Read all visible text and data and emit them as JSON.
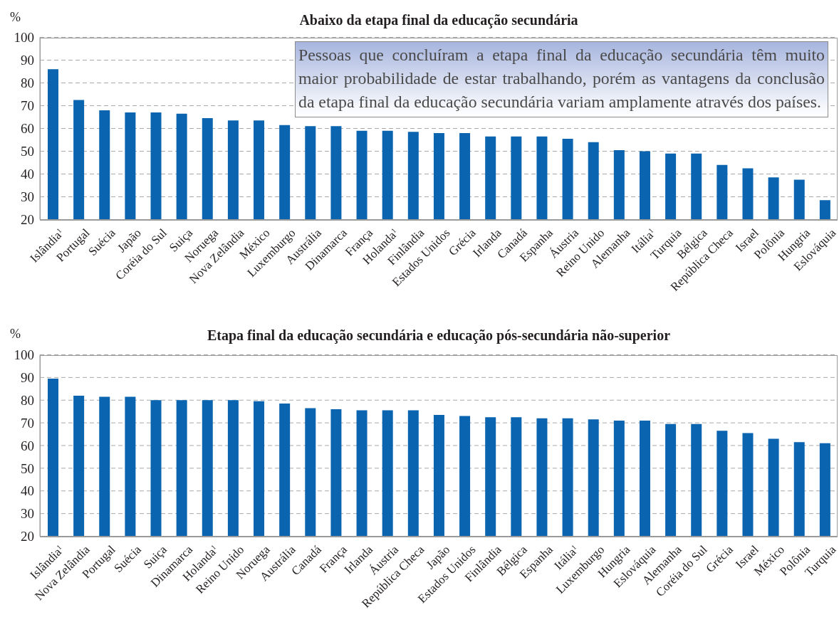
{
  "chart_data": [
    {
      "type": "bar",
      "title": "Abaixo da etapa final da educação secundária",
      "ylabel": "%",
      "categories": [
        "Islândia$^{1}$",
        "Portugal",
        "Suécia",
        "Japão",
        "Coréia do Sul",
        "Suiça",
        "Noruega",
        "Nova Zelândia",
        "México",
        "Luxemburgo",
        "Austrália",
        "Dinamarca",
        "França",
        "Holanda$^{1}$",
        "Finlândia",
        "Estados Unidos",
        "Grécia",
        "Irlanda",
        "Canadá",
        "Espanha",
        "Áustria",
        "Reino Unido",
        "Alemanha",
        "Itália$^{1}$",
        "Turquia",
        "Bélgica",
        "República Checa",
        "Israel",
        "Polônia",
        "Hungria",
        "Eslováquia"
      ],
      "values": [
        86,
        72.5,
        68,
        67,
        67,
        66.5,
        64.5,
        63.5,
        63.5,
        61.5,
        61,
        61,
        59,
        59,
        58.5,
        58,
        58,
        56.5,
        56.5,
        56.5,
        55.5,
        54,
        50.5,
        50,
        49,
        49,
        44,
        42.5,
        38.5,
        37.5,
        28.5
      ],
      "color": "#0a64b0",
      "ylim": [
        20,
        100
      ],
      "yticks": [
        20,
        30,
        40,
        50,
        60,
        70,
        80,
        90,
        100
      ],
      "grid": "y",
      "annotations": [
        "Pessoas que concluíram a etapa final da educação secundária têm muito maior probabilidade de estar trabalhando, porém as vantagens da conclusão da etapa final da educação secundária variam amplamente através dos países."
      ]
    },
    {
      "type": "bar",
      "title": "Etapa final da educação secundária e educação pós-secundária não-superior",
      "ylabel": "%",
      "categories": [
        "Islândia$^{1}$",
        "Nova Zelândia",
        "Portugal",
        "Suécia",
        "Suiça",
        "Dinamarca",
        "Holanda$^{1}$",
        "Reino Unido",
        "Noruega",
        "Austrália",
        "Canadá",
        "França",
        "Irlanda",
        "Áustria",
        "República Checa",
        "Japão",
        "Estados Unidos",
        "Finlândia",
        "Bélgica",
        "Espanha",
        "Itália$^{1}$",
        "Luxemburgo",
        "Hungria",
        "Eslováquia",
        "Alemanha",
        "Coréia do Sul",
        "Grécia",
        "Israel",
        "México",
        "Polônia",
        "Turquia"
      ],
      "values": [
        89.5,
        82,
        81.5,
        81.5,
        80,
        80,
        80,
        80,
        79.5,
        78.5,
        76.5,
        76,
        75.5,
        75.5,
        75.5,
        73.5,
        73,
        72.5,
        72.5,
        72,
        72,
        71.5,
        71,
        71,
        69.5,
        69.5,
        66.5,
        65.5,
        63,
        61.5,
        61
      ],
      "color": "#0a64b0",
      "ylim": [
        20,
        100
      ],
      "yticks": [
        20,
        30,
        40,
        50,
        60,
        70,
        80,
        90,
        100
      ],
      "grid": "y"
    }
  ]
}
